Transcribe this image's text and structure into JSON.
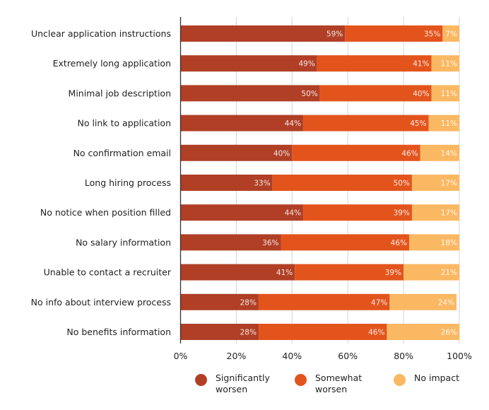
{
  "chart_data": {
    "type": "bar",
    "orientation": "horizontal",
    "stacked": true,
    "title": "",
    "xlabel": "",
    "ylabel": "",
    "xlim": [
      0,
      100
    ],
    "x_ticks": [
      "0%",
      "20%",
      "40%",
      "60%",
      "80%",
      "100%"
    ],
    "grid": true,
    "legend_position": "bottom",
    "categories": [
      "Unclear application instructions",
      "Extremely long application",
      "Minimal job description",
      "No link to application",
      "No confirmation email",
      "Long hiring process",
      "No notice when position filled",
      "No salary information",
      "Unable to contact a recruiter",
      "No info about interview process",
      "No benefits information"
    ],
    "series": [
      {
        "name": "Significantly worsen",
        "color": "#b03f26",
        "values": [
          59,
          49,
          50,
          44,
          40,
          33,
          44,
          36,
          41,
          28,
          28
        ]
      },
      {
        "name": "Somewhat worsen",
        "color": "#e3541d",
        "values": [
          35,
          41,
          40,
          45,
          46,
          50,
          39,
          46,
          39,
          47,
          46
        ]
      },
      {
        "name": "No impact",
        "color": "#fbb862",
        "values": [
          7,
          11,
          11,
          11,
          14,
          17,
          17,
          18,
          21,
          24,
          26
        ]
      }
    ],
    "value_label_suffix": "%"
  },
  "legend": {
    "items": [
      {
        "label": "Significantly worsen",
        "color": "#b03f26"
      },
      {
        "label": "Somewhat worsen",
        "color": "#e3541d"
      },
      {
        "label": "No impact",
        "color": "#fbb862"
      }
    ]
  }
}
